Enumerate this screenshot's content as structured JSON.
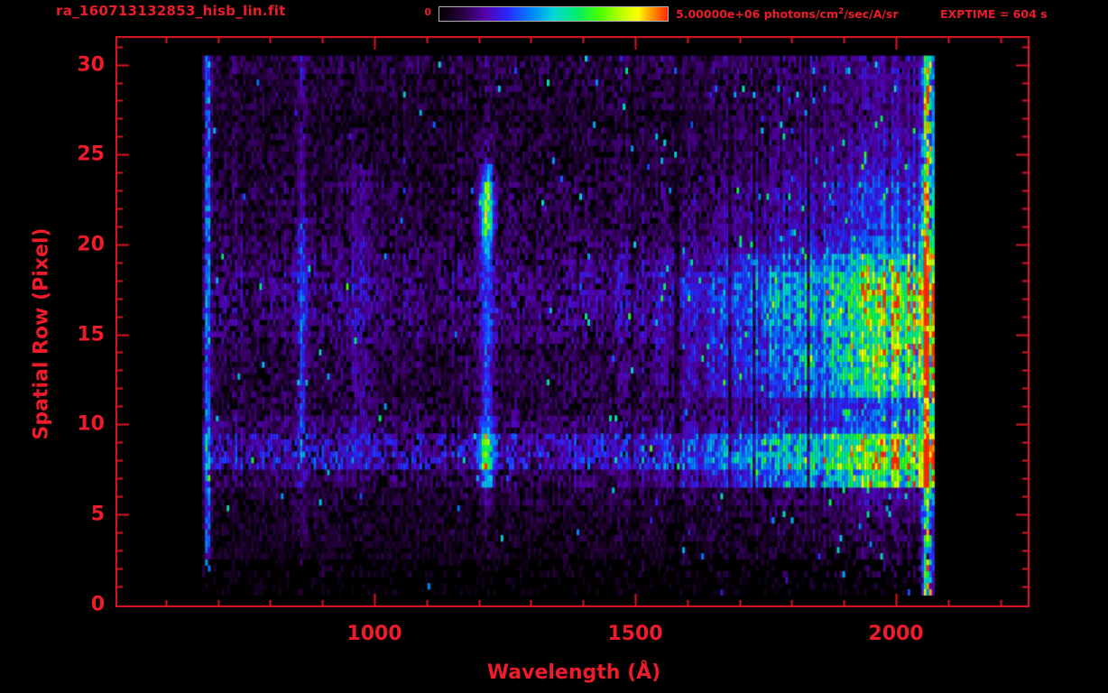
{
  "header": {
    "title": "ra_160713132853_hisb_lin.fit",
    "exptime": "EXPTIME = 604 s",
    "colorbar": {
      "min_label": "0",
      "max_label_prefix": "5.00000e+06 photons/cm",
      "max_label_sup": "2",
      "max_label_suffix": "/sec/A/sr"
    }
  },
  "colors": {
    "accent_red": "#ee1b2b",
    "frame_red": "#df1424",
    "background": "#000000"
  },
  "chart_data": {
    "type": "heatmap",
    "title": "ra_160713132853_hisb_lin.fit",
    "xlabel": "Wavelength (Å)",
    "ylabel": "Spatial Row (Pixel)",
    "xlim": [
      503,
      2254
    ],
    "ylim": [
      0,
      31.6
    ],
    "x_ticks": [
      1000,
      1500,
      2000
    ],
    "x_minor_step": 100,
    "y_ticks": [
      0,
      5,
      10,
      15,
      20,
      25,
      30
    ],
    "y_minor_step": 1,
    "exptime_s": 604,
    "colorbar_range_min": 0,
    "colorbar_range_max": 5000000,
    "colorbar_units": "photons/cm2/sec/A/sr",
    "data_wavelength_range": [
      670,
      2072
    ],
    "data_row_range": [
      1,
      30.5
    ],
    "colormap_stops": [
      [
        0.0,
        0,
        0,
        0
      ],
      [
        0.1,
        40,
        0,
        64
      ],
      [
        0.2,
        85,
        0,
        170
      ],
      [
        0.3,
        40,
        40,
        255
      ],
      [
        0.4,
        0,
        130,
        255
      ],
      [
        0.5,
        0,
        215,
        215
      ],
      [
        0.6,
        0,
        235,
        110
      ],
      [
        0.7,
        70,
        255,
        0
      ],
      [
        0.8,
        190,
        255,
        0
      ],
      [
        0.87,
        255,
        255,
        0
      ],
      [
        0.93,
        255,
        150,
        0
      ],
      [
        1.0,
        255,
        40,
        0
      ]
    ],
    "row_profiles": {
      "continuum": [
        0,
        0.04,
        0.08,
        0.09,
        0.1,
        0.1,
        0.14,
        0.8,
        0.95,
        0.85,
        0.4,
        0.38,
        0.75,
        0.9,
        0.92,
        0.8,
        0.9,
        0.97,
        0.95,
        0.65,
        0.38,
        0.33,
        0.32,
        0.3,
        0.25,
        0.2,
        0.18,
        0.17,
        0.15,
        0.14,
        0.12
      ],
      "lyman_alpha": [
        0,
        0.02,
        0.05,
        0.06,
        0.07,
        0.08,
        0.12,
        0.55,
        0.85,
        0.8,
        0.45,
        0.32,
        0.32,
        0.3,
        0.3,
        0.33,
        0.3,
        0.3,
        0.32,
        0.35,
        0.5,
        0.85,
        0.95,
        0.9,
        0.55,
        0.14,
        0.1,
        0.08,
        0.06,
        0.05,
        0.05
      ],
      "baseline": [
        0,
        0.03,
        0.05,
        0.05,
        0.06,
        0.06,
        0.07,
        0.09,
        0.16,
        0.15,
        0.1,
        0.08,
        0.08,
        0.08,
        0.08,
        0.1,
        0.11,
        0.11,
        0.11,
        0.1,
        0.09,
        0.08,
        0.08,
        0.08,
        0.07,
        0.07,
        0.07,
        0.06,
        0.07,
        0.07,
        0.08
      ]
    },
    "continuum_ramp": {
      "start": 1280,
      "full": 2040,
      "power": 2.2,
      "peak_value": 0.72
    },
    "emission_features": [
      {
        "name": "detector-left-edge",
        "wavelength": 678,
        "sigma": 4,
        "amplitude": 0.3
      },
      {
        "name": "line-860",
        "wavelength": 858,
        "sigma": 6,
        "amplitude": 0.2
      },
      {
        "name": "diffuse-970",
        "wavelength": 970,
        "sigma": 18,
        "amplitude": 0.07
      },
      {
        "name": "lyman-alpha",
        "wavelength": 1213,
        "sigma": 9,
        "amplitude": 0.75
      },
      {
        "name": "detector-right-edge",
        "wavelength": 2058,
        "sigma": 7,
        "amplitude": 0.5
      }
    ]
  }
}
